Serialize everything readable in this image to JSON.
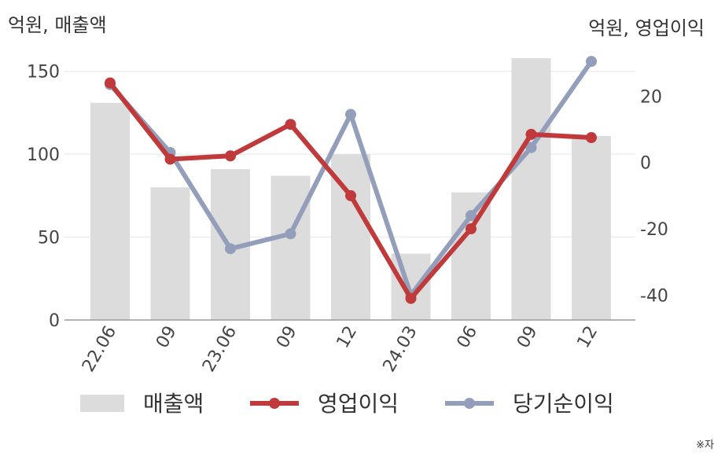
{
  "axis_units": {
    "left": "억원, 매출액",
    "right": "억원, 영업이익"
  },
  "footnote": "※자",
  "colors": {
    "bars": "#dcdcdc",
    "op_profit": "#c0393b",
    "net_profit": "#939fba",
    "grid": "#e6e6e6",
    "axis": "#999999"
  },
  "chart_data": {
    "type": "bar",
    "categories": [
      "22.06",
      "09",
      "23.06",
      "09",
      "12",
      "24.03",
      "06",
      "09",
      "12"
    ],
    "left_axis": {
      "ylim": [
        0,
        175
      ],
      "ticks": [
        0,
        50,
        100,
        150
      ]
    },
    "right_axis": {
      "ylim": [
        -47.5,
        40
      ],
      "ticks": [
        -40,
        -20,
        0,
        20
      ]
    },
    "series": [
      {
        "name": "매출액",
        "type": "bar",
        "axis": "left",
        "values": [
          131,
          80,
          91,
          87,
          100,
          40,
          77,
          158,
          111
        ]
      },
      {
        "name": "영업이익",
        "type": "line",
        "axis": "right",
        "values": [
          24,
          1,
          2,
          11.5,
          -10,
          -41,
          -20,
          8.5,
          7.5
        ]
      },
      {
        "name": "당기순이익",
        "type": "line",
        "axis": "right",
        "values": [
          23.5,
          3,
          -26,
          -21.5,
          14.5,
          -40,
          -16,
          4.5,
          30.5
        ]
      }
    ]
  }
}
